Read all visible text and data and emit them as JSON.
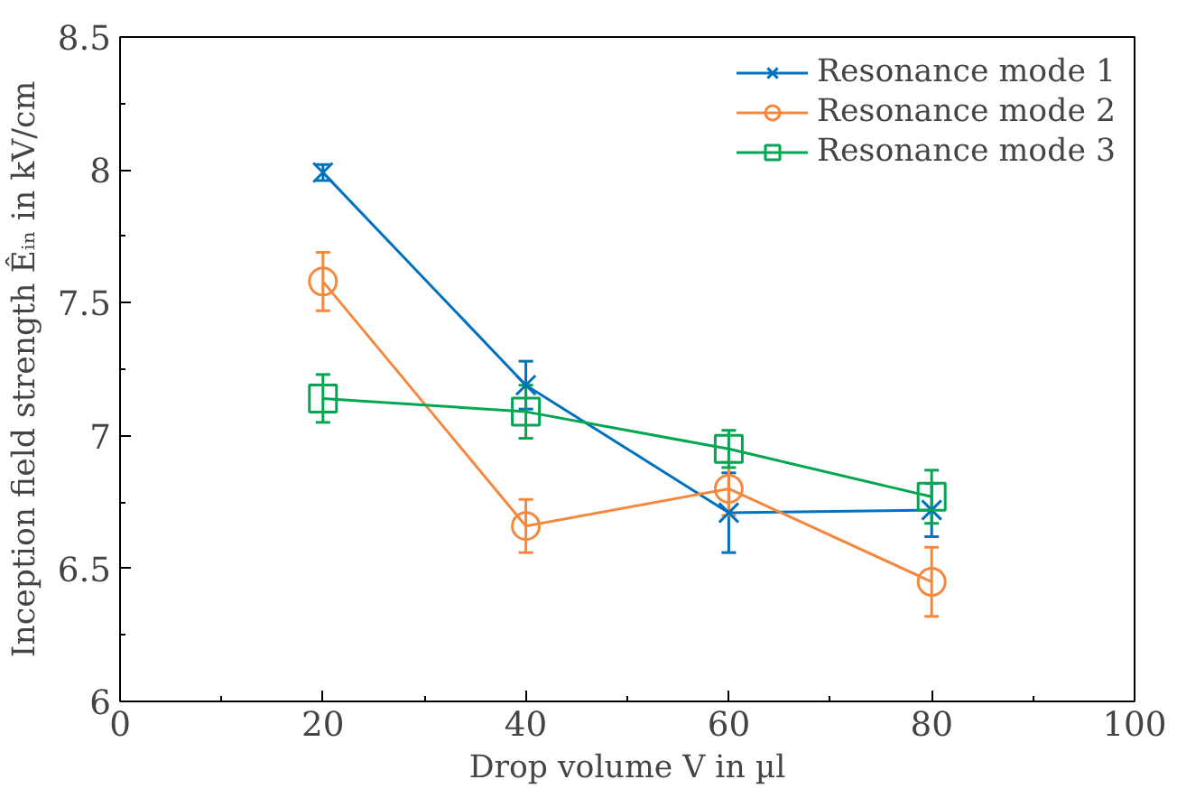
{
  "chart_data": {
    "type": "line",
    "xlabel": "Drop volume V in µl",
    "ylabel": "Inception field strength Êᵢₙ in kV/cm",
    "x": [
      20,
      40,
      60,
      80
    ],
    "series": [
      {
        "name": "Resonance mode 1",
        "color": "#0072bd",
        "marker": "cross",
        "values": [
          7.99,
          7.19,
          6.71,
          6.72
        ],
        "errors": [
          0.03,
          0.09,
          0.15,
          0.1
        ]
      },
      {
        "name": "Resonance mode 2",
        "color": "#f5883c",
        "marker": "circle",
        "values": [
          7.58,
          6.66,
          6.8,
          6.45
        ],
        "errors": [
          0.11,
          0.1,
          0.1,
          0.13
        ]
      },
      {
        "name": "Resonance mode 3",
        "color": "#00a650",
        "marker": "square",
        "values": [
          7.14,
          7.09,
          6.95,
          6.77
        ],
        "errors": [
          0.09,
          0.1,
          0.07,
          0.1
        ]
      }
    ],
    "xlim": [
      0,
      100
    ],
    "xticks": [
      0,
      20,
      40,
      60,
      80,
      100
    ],
    "ylim": [
      6,
      8.5
    ],
    "yticks": [
      6,
      6.5,
      7,
      7.5,
      8,
      8.5
    ],
    "grid": false,
    "legend": "top right",
    "line_style": "solid"
  }
}
